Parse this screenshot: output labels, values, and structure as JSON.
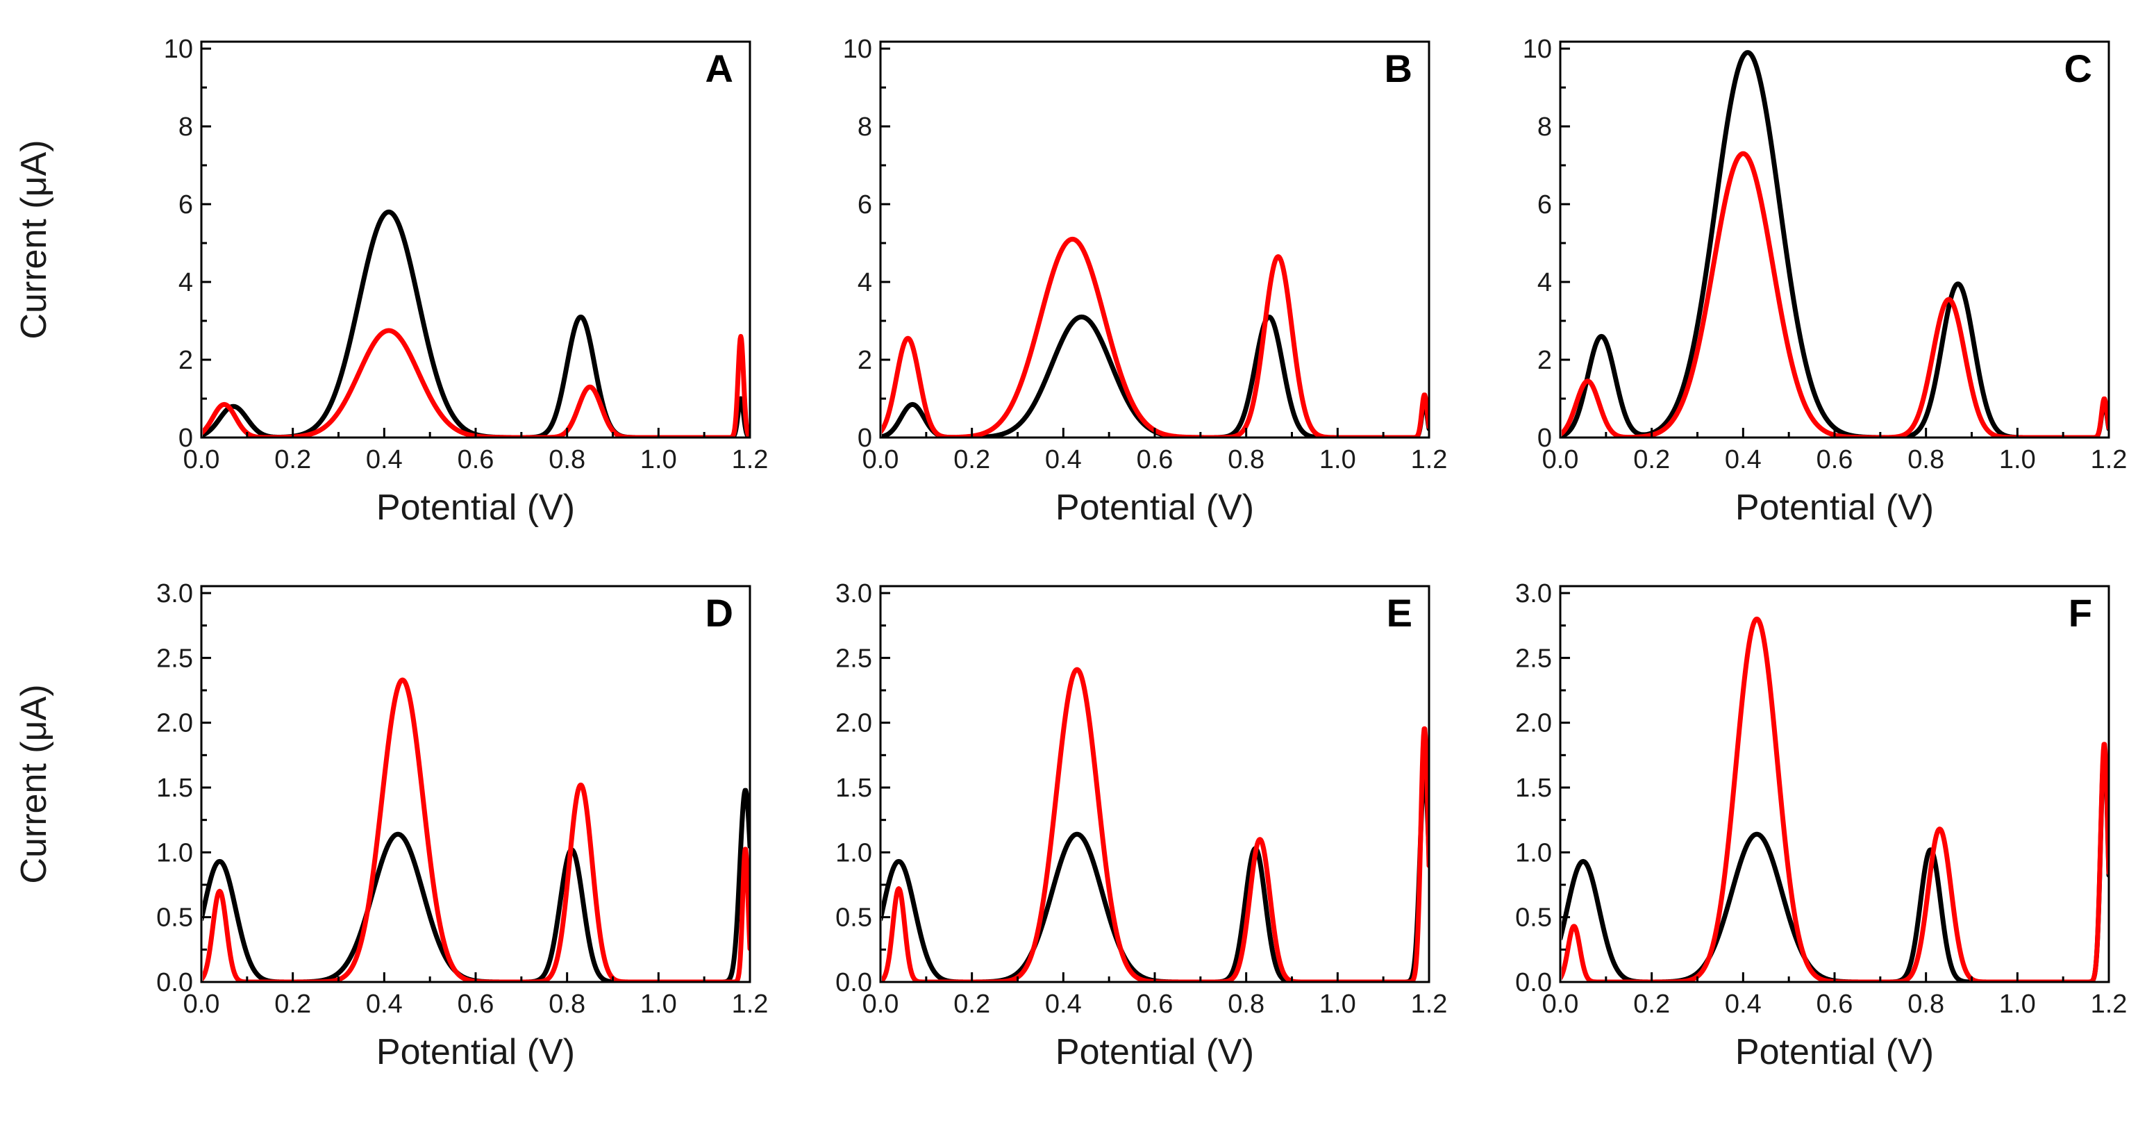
{
  "figure": {
    "series_colors": {
      "black": "#000000",
      "red": "#ff0000"
    },
    "axis_titles": {
      "x": "Potential (V)",
      "y": "Current (μA)"
    }
  },
  "chart_data": [
    {
      "type": "line",
      "panel": "A",
      "xlabel": "Potential (V)",
      "ylabel": "Current (μA)",
      "xlim": [
        0.0,
        1.2
      ],
      "ylim": [
        0,
        10
      ],
      "xticks": [
        0.0,
        0.2,
        0.4,
        0.6,
        0.8,
        1.0,
        1.2
      ],
      "xtick_labels": [
        "0.0",
        "0.2",
        "0.4",
        "0.6",
        "0.8",
        "1.0",
        "1.2"
      ],
      "yticks": [
        0,
        2,
        4,
        6,
        8,
        10
      ],
      "ytick_labels": [
        "0",
        "2",
        "4",
        "6",
        "8",
        "10"
      ],
      "series": [
        {
          "name": "black",
          "color": "#000000",
          "peaks": [
            {
              "center": 0.07,
              "height": 0.8,
              "width": 0.03
            },
            {
              "center": 0.41,
              "height": 5.8,
              "width": 0.065
            },
            {
              "center": 0.83,
              "height": 3.1,
              "width": 0.03
            },
            {
              "center": 1.18,
              "height": 1.0,
              "width": 0.006
            }
          ]
        },
        {
          "name": "red",
          "color": "#ff0000",
          "peaks": [
            {
              "center": 0.05,
              "height": 0.85,
              "width": 0.025
            },
            {
              "center": 0.41,
              "height": 2.75,
              "width": 0.065
            },
            {
              "center": 0.85,
              "height": 1.3,
              "width": 0.025
            },
            {
              "center": 1.18,
              "height": 2.6,
              "width": 0.006
            }
          ]
        }
      ]
    },
    {
      "type": "line",
      "panel": "B",
      "xlabel": "Potential (V)",
      "ylabel": "",
      "xlim": [
        0.0,
        1.2
      ],
      "ylim": [
        0,
        10
      ],
      "xticks": [
        0.0,
        0.2,
        0.4,
        0.6,
        0.8,
        1.0,
        1.2
      ],
      "xtick_labels": [
        "0.0",
        "0.2",
        "0.4",
        "0.6",
        "0.8",
        "1.0",
        "1.2"
      ],
      "yticks": [
        0,
        2,
        4,
        6,
        8,
        10
      ],
      "ytick_labels": [
        "0",
        "2",
        "4",
        "6",
        "8",
        "10"
      ],
      "series": [
        {
          "name": "black",
          "color": "#000000",
          "peaks": [
            {
              "center": 0.07,
              "height": 0.85,
              "width": 0.025
            },
            {
              "center": 0.44,
              "height": 3.1,
              "width": 0.065
            },
            {
              "center": 0.85,
              "height": 3.1,
              "width": 0.03
            },
            {
              "center": 1.19,
              "height": 0.9,
              "width": 0.006
            }
          ]
        },
        {
          "name": "red",
          "color": "#ff0000",
          "peaks": [
            {
              "center": 0.06,
              "height": 2.55,
              "width": 0.025
            },
            {
              "center": 0.42,
              "height": 5.1,
              "width": 0.07
            },
            {
              "center": 0.87,
              "height": 4.65,
              "width": 0.03
            },
            {
              "center": 1.19,
              "height": 1.1,
              "width": 0.006
            }
          ]
        }
      ]
    },
    {
      "type": "line",
      "panel": "C",
      "xlabel": "Potential (V)",
      "ylabel": "",
      "xlim": [
        0.0,
        1.2
      ],
      "ylim": [
        0,
        10
      ],
      "xticks": [
        0.0,
        0.2,
        0.4,
        0.6,
        0.8,
        1.0,
        1.2
      ],
      "xtick_labels": [
        "0.0",
        "0.2",
        "0.4",
        "0.6",
        "0.8",
        "1.0",
        "1.2"
      ],
      "yticks": [
        0,
        2,
        4,
        6,
        8,
        10
      ],
      "ytick_labels": [
        "0",
        "2",
        "4",
        "6",
        "8",
        "10"
      ],
      "series": [
        {
          "name": "black",
          "color": "#000000",
          "peaks": [
            {
              "center": 0.09,
              "height": 2.6,
              "width": 0.03
            },
            {
              "center": 0.41,
              "height": 9.9,
              "width": 0.07
            },
            {
              "center": 0.87,
              "height": 3.95,
              "width": 0.035
            },
            {
              "center": 1.19,
              "height": 0.9,
              "width": 0.006
            }
          ]
        },
        {
          "name": "red",
          "color": "#ff0000",
          "peaks": [
            {
              "center": 0.06,
              "height": 1.45,
              "width": 0.025
            },
            {
              "center": 0.4,
              "height": 7.3,
              "width": 0.065
            },
            {
              "center": 0.85,
              "height": 3.55,
              "width": 0.035
            },
            {
              "center": 1.19,
              "height": 1.0,
              "width": 0.006
            }
          ]
        }
      ]
    },
    {
      "type": "line",
      "panel": "D",
      "xlabel": "Potential (V)",
      "ylabel": "Current (μA)",
      "xlim": [
        0.0,
        1.2
      ],
      "ylim": [
        0,
        3.0
      ],
      "xticks": [
        0.0,
        0.2,
        0.4,
        0.6,
        0.8,
        1.0,
        1.2
      ],
      "xtick_labels": [
        "0.0",
        "0.2",
        "0.4",
        "0.6",
        "0.8",
        "1.0",
        "1.2"
      ],
      "yticks": [
        0.0,
        0.5,
        1.0,
        1.5,
        2.0,
        2.5,
        3.0
      ],
      "ytick_labels": [
        "0.0",
        "0.5",
        "1.0",
        "1.5",
        "2.0",
        "2.5",
        "3.0"
      ],
      "series": [
        {
          "name": "black",
          "color": "#000000",
          "peaks": [
            {
              "center": 0.04,
              "height": 0.93,
              "width": 0.035
            },
            {
              "center": 0.43,
              "height": 1.14,
              "width": 0.055
            },
            {
              "center": 0.81,
              "height": 1.02,
              "width": 0.025
            },
            {
              "center": 1.19,
              "height": 1.48,
              "width": 0.012
            }
          ]
        },
        {
          "name": "red",
          "color": "#ff0000",
          "peaks": [
            {
              "center": 0.04,
              "height": 0.7,
              "width": 0.015
            },
            {
              "center": 0.44,
              "height": 2.33,
              "width": 0.045
            },
            {
              "center": 0.83,
              "height": 1.52,
              "width": 0.025
            },
            {
              "center": 1.19,
              "height": 1.03,
              "width": 0.006
            }
          ]
        }
      ]
    },
    {
      "type": "line",
      "panel": "E",
      "xlabel": "Potential (V)",
      "ylabel": "",
      "xlim": [
        0.0,
        1.2
      ],
      "ylim": [
        0,
        3.0
      ],
      "xticks": [
        0.0,
        0.2,
        0.4,
        0.6,
        0.8,
        1.0,
        1.2
      ],
      "xtick_labels": [
        "0.0",
        "0.2",
        "0.4",
        "0.6",
        "0.8",
        "1.0",
        "1.2"
      ],
      "yticks": [
        0.0,
        0.5,
        1.0,
        1.5,
        2.0,
        2.5,
        3.0
      ],
      "ytick_labels": [
        "0.0",
        "0.5",
        "1.0",
        "1.5",
        "2.0",
        "2.5",
        "3.0"
      ],
      "series": [
        {
          "name": "black",
          "color": "#000000",
          "peaks": [
            {
              "center": 0.04,
              "height": 0.93,
              "width": 0.035
            },
            {
              "center": 0.43,
              "height": 1.14,
              "width": 0.055
            },
            {
              "center": 0.82,
              "height": 1.03,
              "width": 0.022
            },
            {
              "center": 1.19,
              "height": 1.6,
              "width": 0.01
            }
          ]
        },
        {
          "name": "red",
          "color": "#ff0000",
          "peaks": [
            {
              "center": 0.04,
              "height": 0.72,
              "width": 0.013
            },
            {
              "center": 0.43,
              "height": 2.41,
              "width": 0.045
            },
            {
              "center": 0.83,
              "height": 1.1,
              "width": 0.022
            },
            {
              "center": 1.19,
              "height": 1.96,
              "width": 0.008
            }
          ]
        }
      ]
    },
    {
      "type": "line",
      "panel": "F",
      "xlabel": "Potential (V)",
      "ylabel": "",
      "xlim": [
        0.0,
        1.2
      ],
      "ylim": [
        0,
        3.0
      ],
      "xticks": [
        0.0,
        0.2,
        0.4,
        0.6,
        0.8,
        1.0,
        1.2
      ],
      "xtick_labels": [
        "0.0",
        "0.2",
        "0.4",
        "0.6",
        "0.8",
        "1.0",
        "1.2"
      ],
      "yticks": [
        0.0,
        0.5,
        1.0,
        1.5,
        2.0,
        2.5,
        3.0
      ],
      "ytick_labels": [
        "0.0",
        "0.5",
        "1.0",
        "1.5",
        "2.0",
        "2.5",
        "3.0"
      ],
      "series": [
        {
          "name": "black",
          "color": "#000000",
          "peaks": [
            {
              "center": 0.05,
              "height": 0.93,
              "width": 0.035
            },
            {
              "center": 0.43,
              "height": 1.14,
              "width": 0.055
            },
            {
              "center": 0.81,
              "height": 1.02,
              "width": 0.022
            },
            {
              "center": 1.19,
              "height": 1.8,
              "width": 0.008
            }
          ]
        },
        {
          "name": "red",
          "color": "#ff0000",
          "peaks": [
            {
              "center": 0.03,
              "height": 0.43,
              "width": 0.013
            },
            {
              "center": 0.43,
              "height": 2.8,
              "width": 0.045
            },
            {
              "center": 0.83,
              "height": 1.18,
              "width": 0.025
            },
            {
              "center": 1.19,
              "height": 1.84,
              "width": 0.008
            }
          ]
        }
      ]
    }
  ]
}
